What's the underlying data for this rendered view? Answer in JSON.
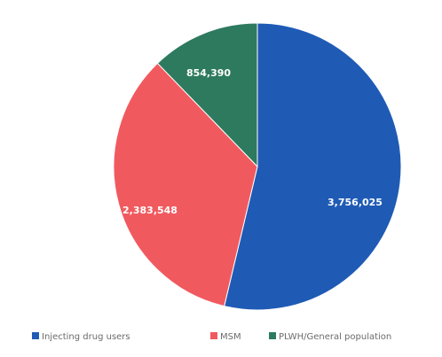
{
  "chart_data": {
    "type": "pie",
    "title": "",
    "slices": [
      {
        "name": "Injecting drug users",
        "value": 3756025,
        "display": "3,756,025",
        "color": "#1f5bb5"
      },
      {
        "name": "MSM",
        "value": 2383548,
        "display": "2,383,548",
        "color": "#f05a5f"
      },
      {
        "name": "PLWH/General population",
        "value": 854390,
        "display": "854,390",
        "color": "#2e7a5f"
      }
    ],
    "legend_position": "bottom",
    "start_angle_deg": 0,
    "direction": "clockwise"
  }
}
